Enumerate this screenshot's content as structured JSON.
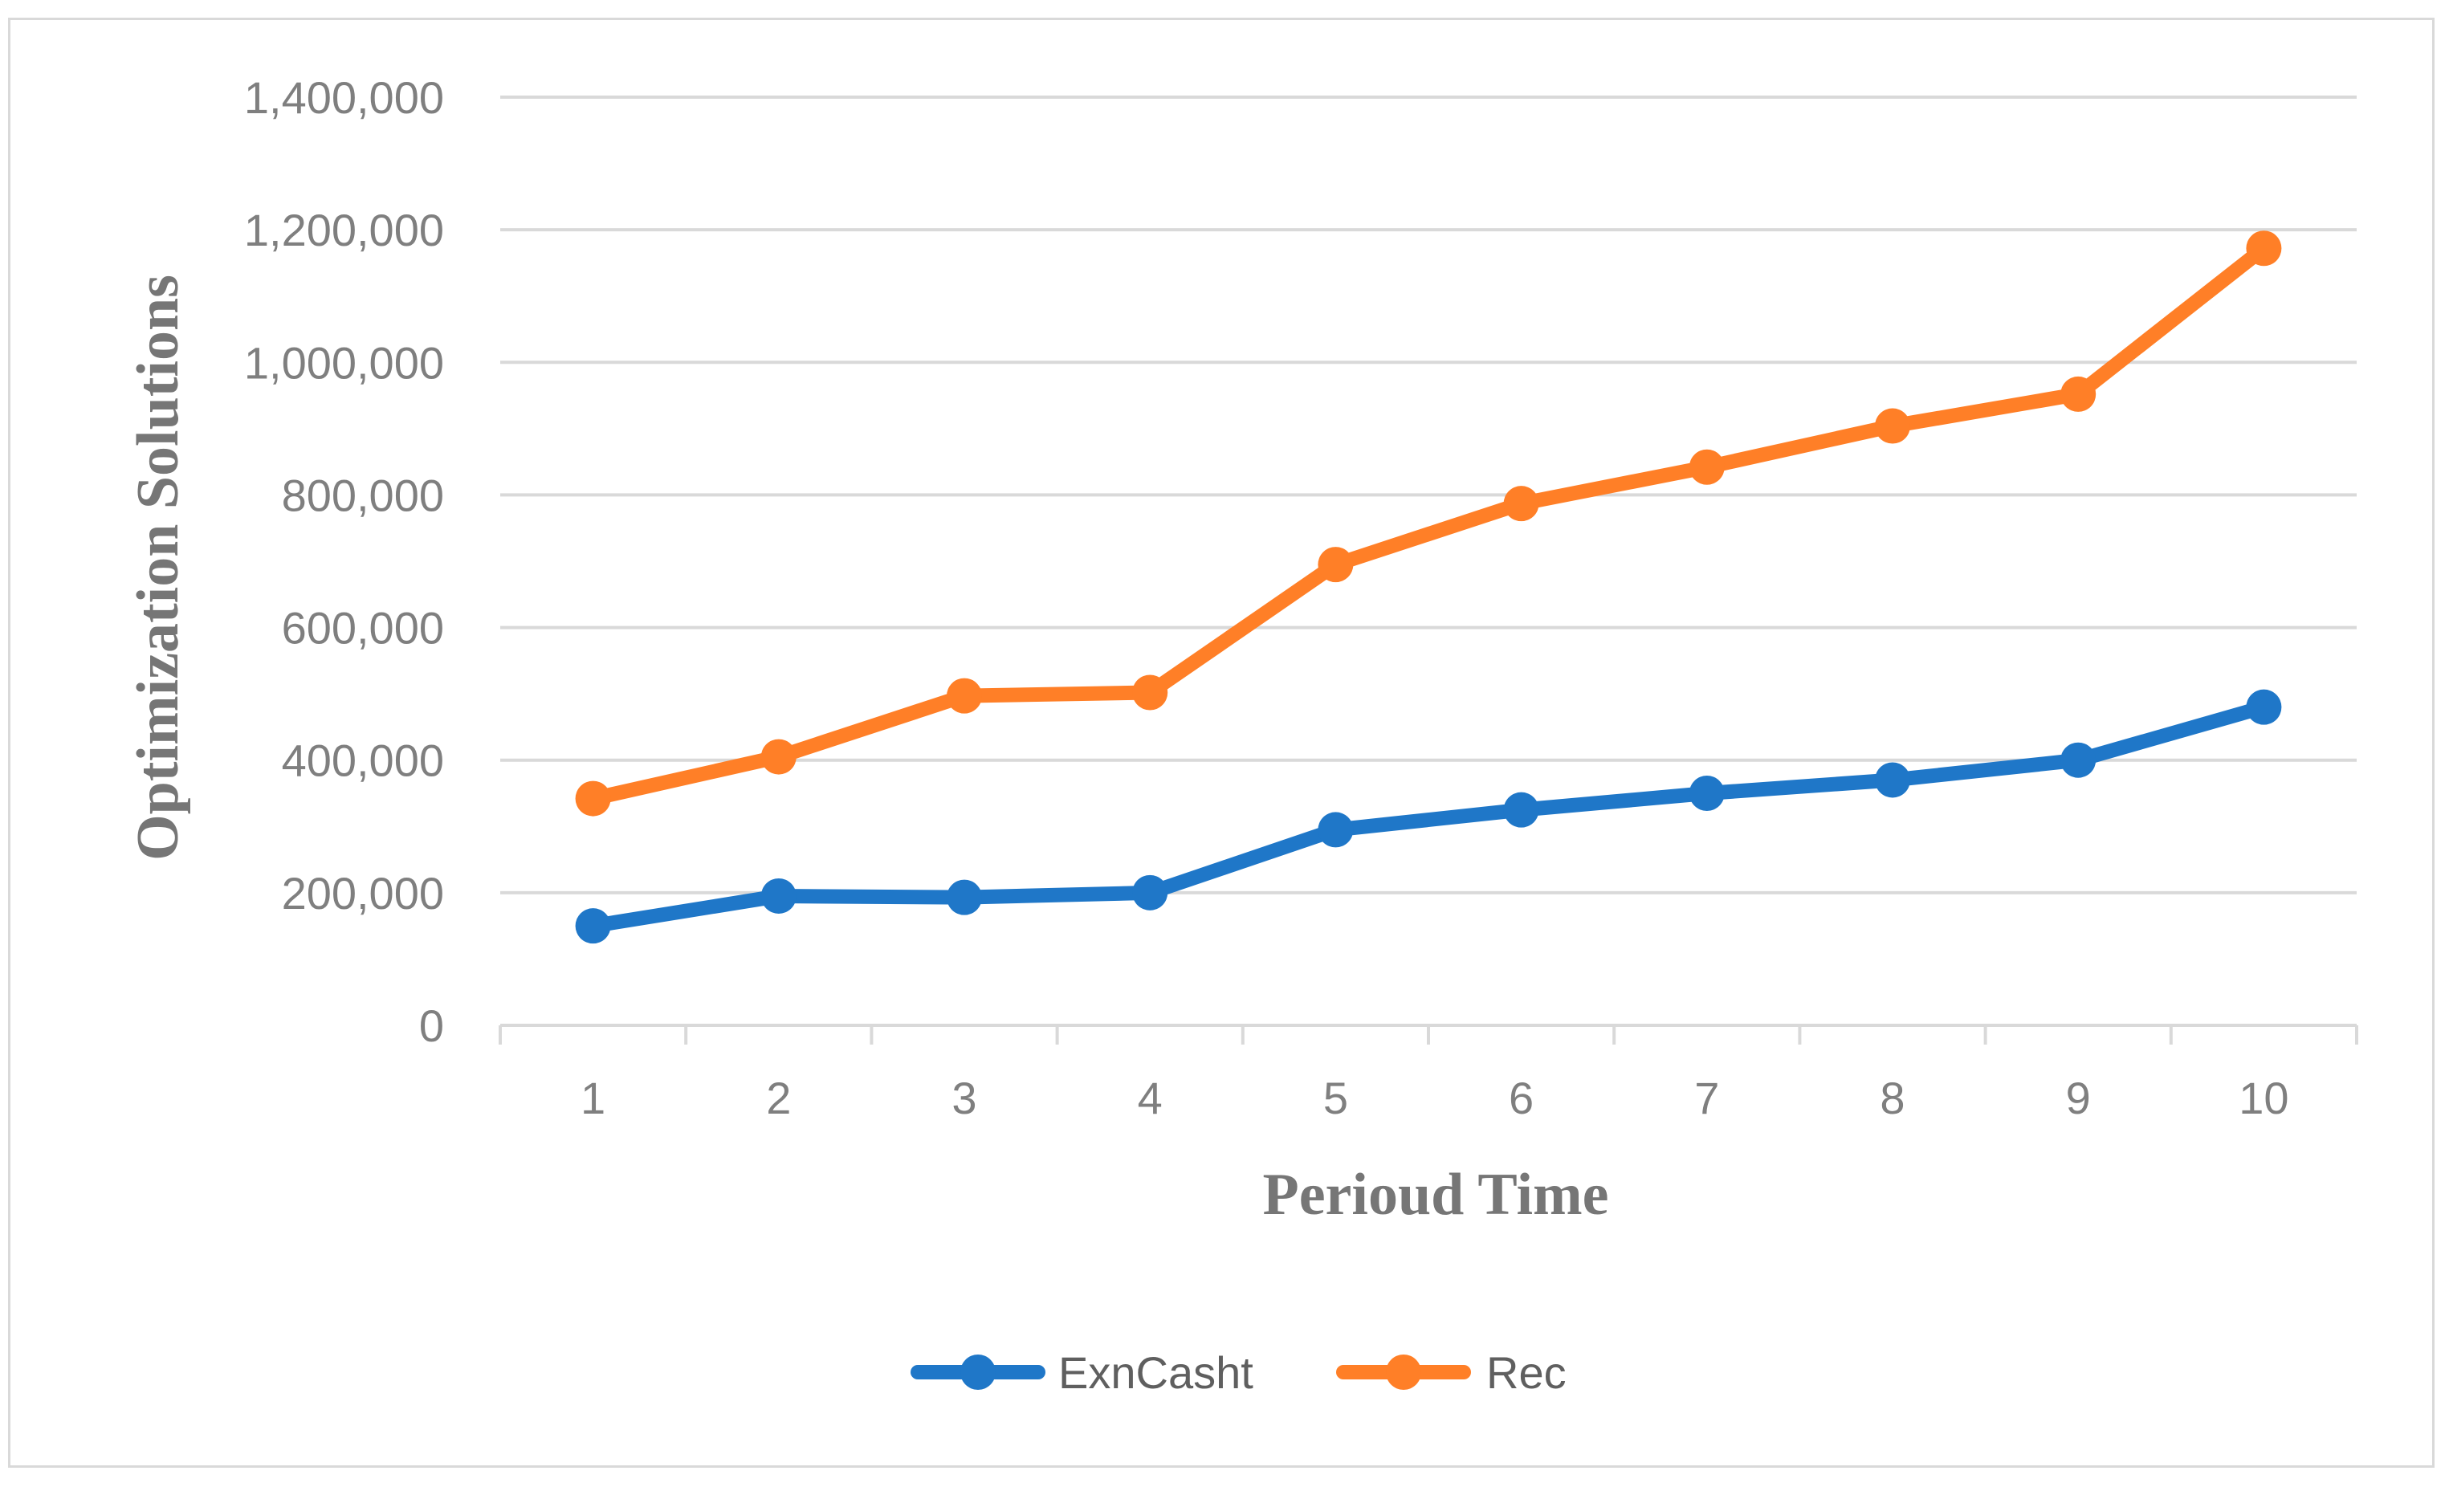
{
  "chart_data": {
    "type": "line",
    "categories": [
      "1",
      "2",
      "3",
      "4",
      "5",
      "6",
      "7",
      "8",
      "9",
      "10"
    ],
    "series": [
      {
        "name": "ExnCasht",
        "color": "#1f77c8",
        "values": [
          150000,
          195000,
          193000,
          200000,
          295000,
          325000,
          350000,
          370000,
          400000,
          480000
        ]
      },
      {
        "name": "Rec",
        "color": "#ff7f27",
        "values": [
          342000,
          405000,
          497000,
          502000,
          695000,
          787000,
          842000,
          904000,
          952000,
          1172000
        ]
      }
    ],
    "xlabel": "Perioud Time",
    "ylabel": "Optimization Solutions",
    "ylim": [
      0,
      1400000
    ],
    "yticks": [
      "0",
      "200,000",
      "400,000",
      "600,000",
      "800,000",
      "1,000,000",
      "1,200,000",
      "1,400,000"
    ],
    "grid": true,
    "legend": "bottom-center"
  }
}
